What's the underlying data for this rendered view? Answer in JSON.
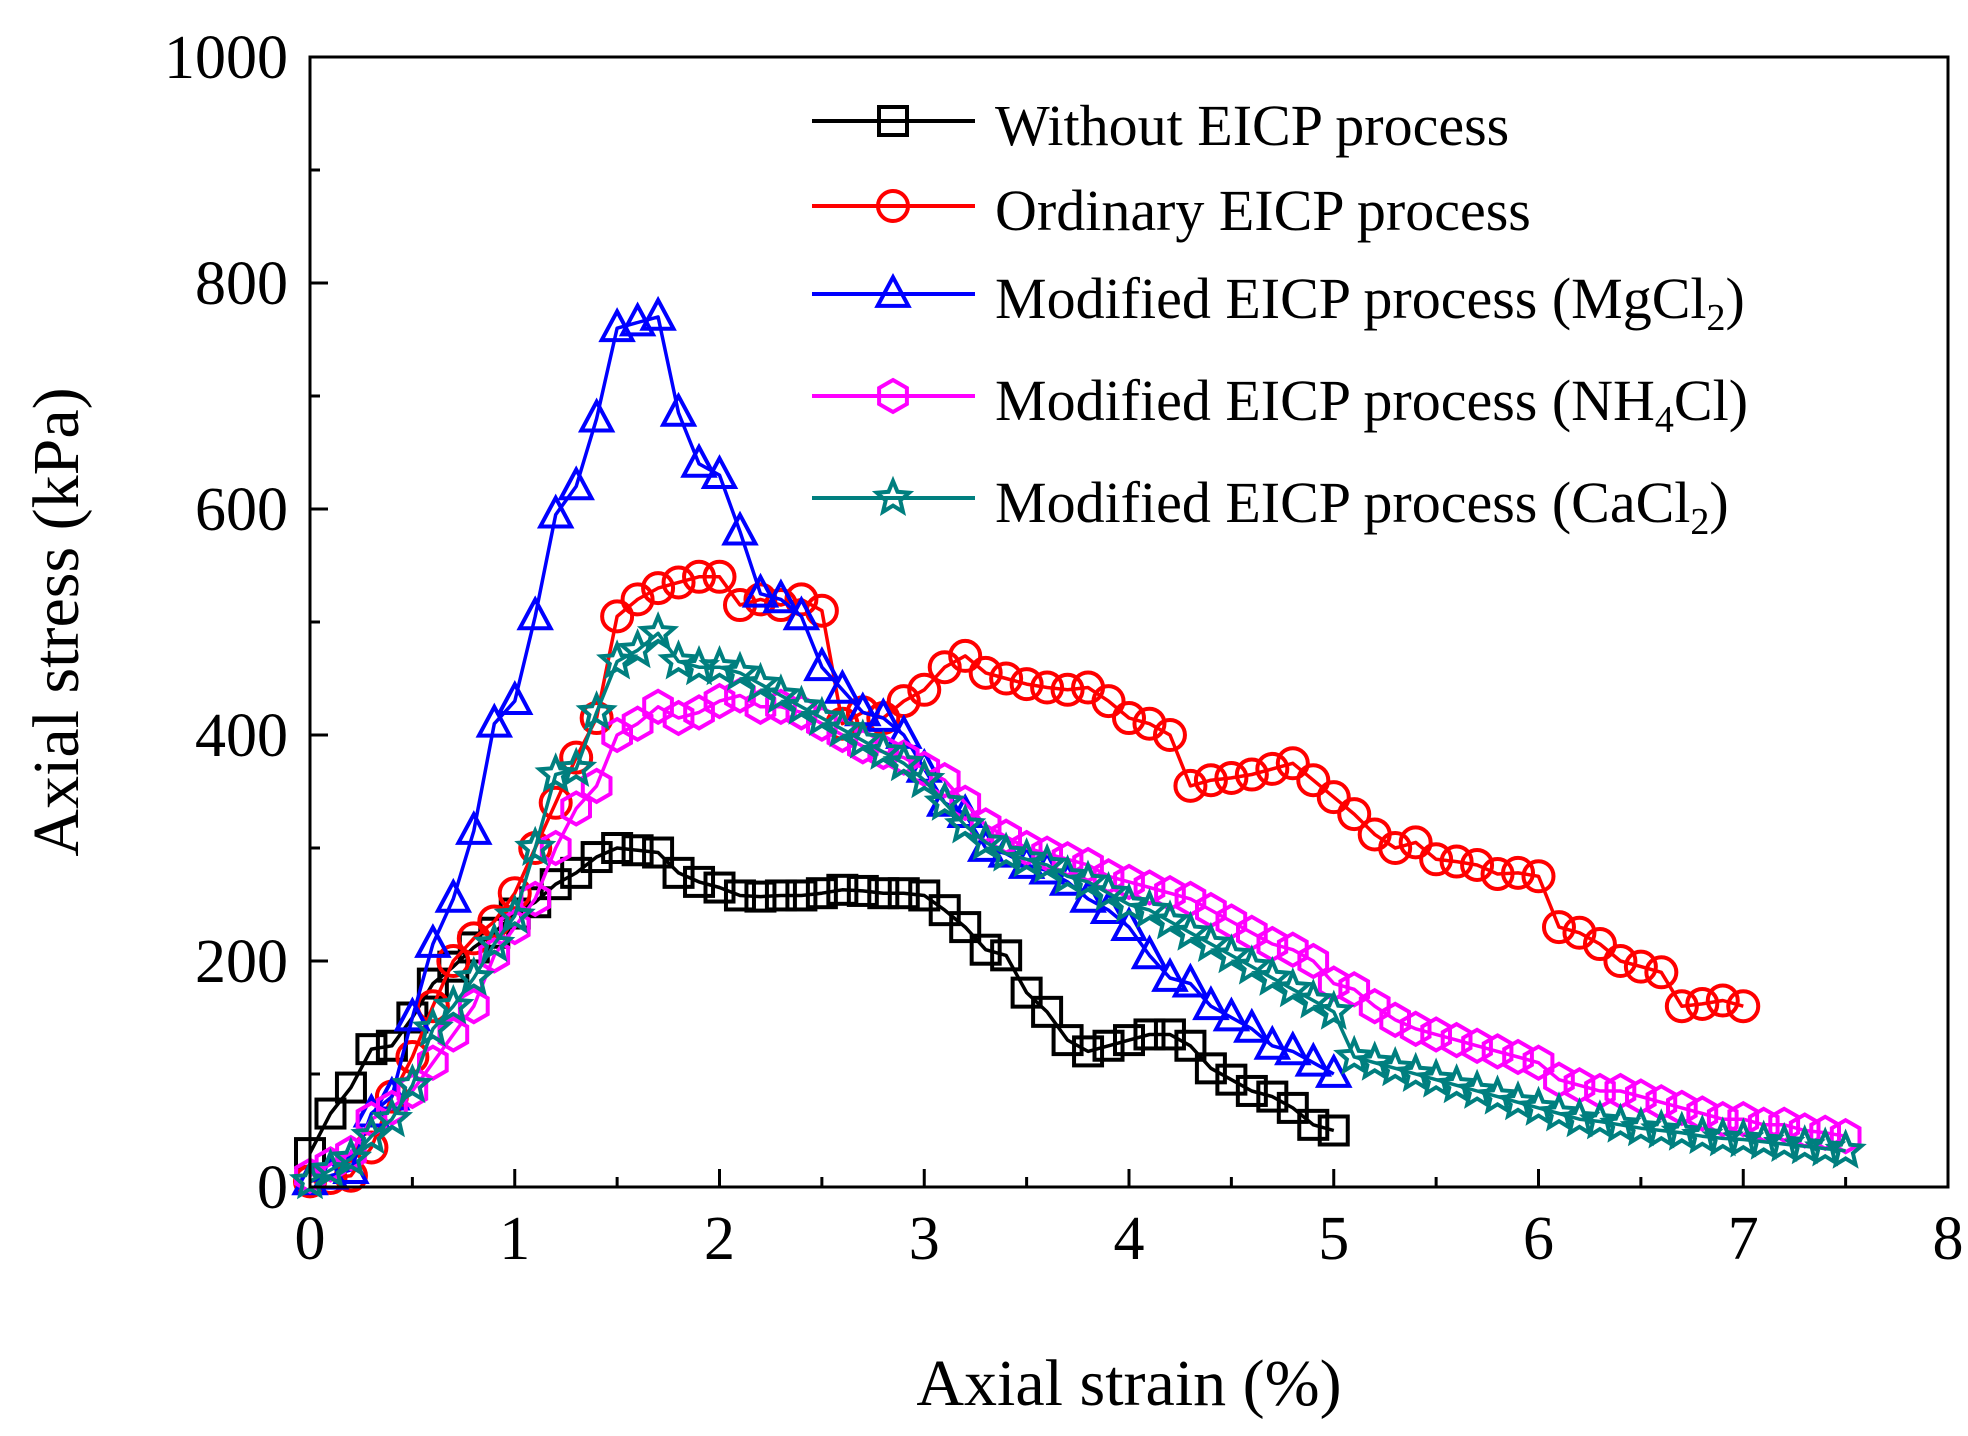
{
  "chart_data": {
    "type": "line",
    "title": "",
    "xlabel": "Axial strain (%)",
    "ylabel": "Axial stress (kPa)",
    "xlim": [
      0,
      8
    ],
    "ylim": [
      0,
      1000
    ],
    "xticks": [
      0,
      1,
      2,
      3,
      4,
      5,
      6,
      7,
      8
    ],
    "yticks": [
      0,
      200,
      400,
      600,
      800,
      1000
    ],
    "x_tick_labels": [
      "0",
      "1",
      "2",
      "3",
      "4",
      "5",
      "6",
      "7",
      "8"
    ],
    "y_tick_labels": [
      "0",
      "200",
      "400",
      "600",
      "800",
      "1000"
    ],
    "grid": false,
    "legend_position": "top-right",
    "series": [
      {
        "name": "Without EICP process",
        "legend_main": "Without EICP process",
        "legend_sub": "",
        "legend_suffix": "",
        "color": "#000000",
        "marker": "square",
        "x": [
          0.0,
          0.1,
          0.2,
          0.3,
          0.4,
          0.5,
          0.6,
          0.7,
          0.8,
          0.9,
          1.0,
          1.1,
          1.2,
          1.3,
          1.4,
          1.5,
          1.6,
          1.7,
          1.8,
          1.9,
          2.0,
          2.1,
          2.2,
          2.3,
          2.4,
          2.5,
          2.6,
          2.7,
          2.8,
          2.9,
          3.0,
          3.1,
          3.2,
          3.3,
          3.4,
          3.5,
          3.6,
          3.7,
          3.8,
          3.9,
          4.0,
          4.1,
          4.2,
          4.3,
          4.4,
          4.5,
          4.6,
          4.7,
          4.8,
          4.9,
          5.0
        ],
        "y": [
          30,
          65,
          88,
          122,
          125,
          150,
          180,
          195,
          212,
          225,
          242,
          252,
          268,
          278,
          292,
          300,
          298,
          296,
          278,
          270,
          265,
          258,
          257,
          258,
          258,
          260,
          263,
          262,
          260,
          260,
          258,
          245,
          230,
          210,
          205,
          172,
          155,
          130,
          120,
          125,
          130,
          135,
          135,
          125,
          105,
          95,
          85,
          80,
          70,
          55,
          50
        ],
        "marker_every": 1
      },
      {
        "name": "Ordinary EICP process",
        "legend_main": "Ordinary EICP process",
        "legend_sub": "",
        "legend_suffix": "",
        "color": "#ff0000",
        "marker": "circle",
        "x": [
          0.0,
          0.1,
          0.2,
          0.3,
          0.4,
          0.5,
          0.6,
          0.7,
          0.8,
          0.9,
          1.0,
          1.1,
          1.2,
          1.3,
          1.4,
          1.5,
          1.6,
          1.7,
          1.8,
          1.9,
          2.0,
          2.1,
          2.2,
          2.3,
          2.4,
          2.5,
          2.6,
          2.7,
          2.8,
          2.9,
          3.0,
          3.1,
          3.2,
          3.3,
          3.4,
          3.5,
          3.6,
          3.7,
          3.8,
          3.9,
          4.0,
          4.1,
          4.2,
          4.3,
          4.4,
          4.5,
          4.6,
          4.7,
          4.8,
          4.9,
          5.0,
          5.1,
          5.2,
          5.3,
          5.4,
          5.5,
          5.6,
          5.7,
          5.8,
          5.9,
          6.0,
          6.1,
          6.2,
          6.3,
          6.4,
          6.5,
          6.6,
          6.7,
          6.8,
          6.9,
          7.0
        ],
        "y": [
          5,
          8,
          10,
          35,
          80,
          115,
          160,
          200,
          220,
          235,
          260,
          300,
          340,
          380,
          415,
          505,
          520,
          530,
          535,
          540,
          540,
          515,
          520,
          515,
          520,
          510,
          410,
          420,
          415,
          430,
          440,
          460,
          470,
          455,
          450,
          445,
          442,
          440,
          442,
          430,
          415,
          410,
          400,
          355,
          360,
          362,
          365,
          370,
          375,
          360,
          345,
          330,
          312,
          300,
          305,
          290,
          288,
          285,
          277,
          278,
          275,
          230,
          225,
          215,
          200,
          195,
          190,
          160,
          162,
          165,
          160
        ],
        "marker_every": 1
      },
      {
        "name": "Modified EICP process (MgCl2)",
        "legend_main": "Modified EICP process (MgCl",
        "legend_sub": "2",
        "legend_suffix": ")",
        "color": "#0000ff",
        "marker": "triangle",
        "x": [
          0.0,
          0.1,
          0.2,
          0.3,
          0.4,
          0.5,
          0.6,
          0.7,
          0.8,
          0.9,
          1.0,
          1.1,
          1.2,
          1.3,
          1.4,
          1.5,
          1.6,
          1.7,
          1.8,
          1.9,
          2.0,
          2.1,
          2.2,
          2.3,
          2.4,
          2.5,
          2.6,
          2.7,
          2.8,
          2.9,
          3.0,
          3.1,
          3.2,
          3.3,
          3.4,
          3.5,
          3.6,
          3.7,
          3.8,
          3.9,
          4.0,
          4.1,
          4.2,
          4.3,
          4.4,
          4.5,
          4.6,
          4.7,
          4.8,
          4.9,
          5.0
        ],
        "y": [
          5,
          10,
          15,
          65,
          80,
          150,
          215,
          255,
          315,
          410,
          430,
          505,
          595,
          620,
          680,
          760,
          765,
          770,
          685,
          640,
          630,
          580,
          525,
          520,
          505,
          460,
          440,
          420,
          415,
          400,
          370,
          340,
          330,
          300,
          295,
          285,
          280,
          270,
          255,
          245,
          230,
          205,
          185,
          180,
          160,
          150,
          140,
          125,
          120,
          110,
          100
        ],
        "marker_every": 1
      },
      {
        "name": "Modified EICP process (NH4Cl)",
        "legend_main": "Modified EICP process (NH",
        "legend_sub": "4",
        "legend_suffix": "Cl)",
        "color": "#ff00ff",
        "marker": "hexagon",
        "x": [
          0.0,
          0.1,
          0.2,
          0.3,
          0.4,
          0.5,
          0.6,
          0.7,
          0.8,
          0.9,
          1.0,
          1.1,
          1.2,
          1.3,
          1.4,
          1.5,
          1.6,
          1.7,
          1.8,
          1.9,
          2.0,
          2.1,
          2.2,
          2.3,
          2.4,
          2.5,
          2.6,
          2.7,
          2.8,
          2.9,
          3.0,
          3.1,
          3.2,
          3.3,
          3.4,
          3.5,
          3.6,
          3.7,
          3.8,
          3.9,
          4.0,
          4.1,
          4.2,
          4.3,
          4.4,
          4.5,
          4.6,
          4.7,
          4.8,
          4.9,
          5.0,
          5.1,
          5.2,
          5.3,
          5.4,
          5.5,
          5.6,
          5.7,
          5.8,
          5.9,
          6.0,
          6.1,
          6.2,
          6.3,
          6.4,
          6.5,
          6.6,
          6.7,
          6.8,
          6.9,
          7.0,
          7.1,
          7.2,
          7.3,
          7.4,
          7.5
        ],
        "y": [
          10,
          20,
          30,
          60,
          70,
          85,
          110,
          135,
          160,
          205,
          230,
          255,
          300,
          335,
          355,
          400,
          410,
          425,
          415,
          420,
          430,
          435,
          425,
          425,
          420,
          410,
          400,
          390,
          385,
          380,
          370,
          360,
          340,
          320,
          310,
          300,
          295,
          290,
          285,
          275,
          270,
          265,
          260,
          255,
          245,
          235,
          225,
          215,
          210,
          200,
          180,
          175,
          160,
          148,
          140,
          135,
          130,
          125,
          120,
          115,
          110,
          95,
          90,
          85,
          85,
          80,
          75,
          70,
          65,
          60,
          60,
          55,
          55,
          50,
          48,
          45
        ],
        "marker_every": 1
      },
      {
        "name": "Modified EICP process (CaCl2)",
        "legend_main": "Modified EICP process (CaCl",
        "legend_sub": "2",
        "legend_suffix": ")",
        "color": "#007f7f",
        "marker": "star",
        "x": [
          0.0,
          0.1,
          0.2,
          0.3,
          0.4,
          0.5,
          0.6,
          0.7,
          0.8,
          0.9,
          1.0,
          1.1,
          1.2,
          1.3,
          1.4,
          1.5,
          1.6,
          1.7,
          1.8,
          1.9,
          2.0,
          2.1,
          2.2,
          2.3,
          2.4,
          2.5,
          2.6,
          2.7,
          2.8,
          2.9,
          3.0,
          3.1,
          3.2,
          3.3,
          3.4,
          3.5,
          3.6,
          3.7,
          3.8,
          3.9,
          4.0,
          4.1,
          4.2,
          4.3,
          4.4,
          4.5,
          4.6,
          4.7,
          4.8,
          4.9,
          5.0,
          5.1,
          5.2,
          5.3,
          5.4,
          5.5,
          5.6,
          5.7,
          5.8,
          5.9,
          6.0,
          6.1,
          6.2,
          6.3,
          6.4,
          6.5,
          6.6,
          6.7,
          6.8,
          6.9,
          7.0,
          7.1,
          7.2,
          7.3,
          7.4,
          7.5
        ],
        "y": [
          5,
          15,
          25,
          45,
          60,
          90,
          140,
          160,
          185,
          215,
          240,
          300,
          365,
          370,
          420,
          465,
          475,
          490,
          465,
          460,
          460,
          455,
          445,
          435,
          425,
          415,
          405,
          395,
          385,
          375,
          360,
          340,
          320,
          305,
          295,
          290,
          285,
          275,
          270,
          260,
          250,
          245,
          235,
          225,
          215,
          205,
          195,
          185,
          175,
          165,
          155,
          115,
          110,
          105,
          100,
          95,
          90,
          85,
          80,
          75,
          70,
          65,
          60,
          58,
          55,
          52,
          50,
          48,
          45,
          43,
          42,
          40,
          38,
          36,
          34,
          32
        ],
        "marker_every": 1
      }
    ]
  }
}
